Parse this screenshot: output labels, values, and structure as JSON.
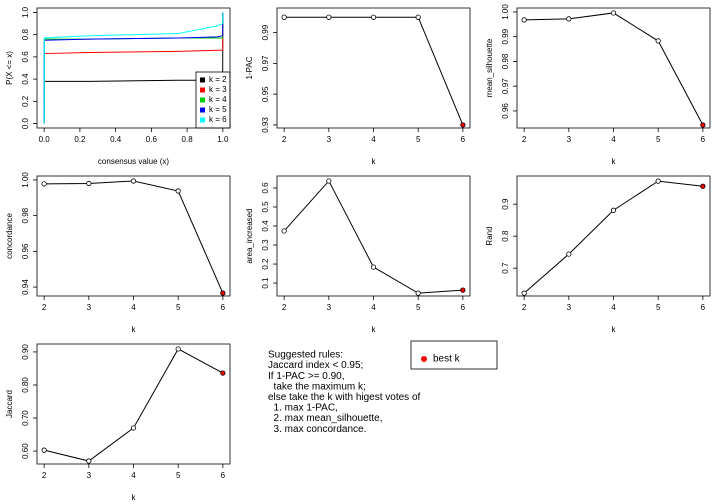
{
  "chart_data": [
    {
      "type": "line",
      "xlabel": "consensus value (x)",
      "ylabel": "P(X <= x)",
      "x": [
        0,
        0.001,
        0.25,
        0.75,
        0.97,
        0.999,
        1
      ],
      "series": [
        {
          "name": "k = 2",
          "color": "#000000",
          "values": [
            0,
            0.38,
            0.38,
            0.39,
            0.39,
            0.39,
            1
          ]
        },
        {
          "name": "k = 3",
          "color": "#ff0000",
          "values": [
            0,
            0.63,
            0.64,
            0.65,
            0.66,
            0.66,
            1
          ]
        },
        {
          "name": "k = 4",
          "color": "#00cd00",
          "values": [
            0,
            0.76,
            0.76,
            0.77,
            0.77,
            0.77,
            1
          ]
        },
        {
          "name": "k = 5",
          "color": "#0000ff",
          "values": [
            0,
            0.75,
            0.76,
            0.77,
            0.78,
            0.79,
            1
          ]
        },
        {
          "name": "k = 6",
          "color": "#00ffff",
          "values": [
            0,
            0.77,
            0.79,
            0.81,
            0.88,
            0.9,
            1
          ]
        }
      ],
      "xlim": [
        -0.04,
        1.04
      ],
      "ylim": [
        -0.04,
        1.04
      ],
      "xticks": [
        {
          "value": 0,
          "label": "0.0"
        },
        0.2,
        0.4,
        0.6,
        0.8,
        {
          "value": 1,
          "label": "1.0"
        }
      ],
      "yticks": [
        {
          "value": 0,
          "label": "0.0"
        },
        0.2,
        0.4,
        0.6,
        0.8,
        {
          "value": 1,
          "label": "1.0"
        }
      ],
      "legend": "bottomright"
    },
    {
      "type": "line",
      "xlabel": "k",
      "ylabel": "1-PAC",
      "x": [
        2,
        3,
        4,
        5,
        6
      ],
      "values": [
        1,
        1,
        1,
        1,
        0.93
      ],
      "color": "#000000",
      "best_x": 6,
      "best_color": "#ff0000",
      "xlim": [
        1.84,
        6.16
      ],
      "ylim": [
        0.928,
        1.006
      ],
      "xticks": [
        2,
        3,
        4,
        5,
        6
      ],
      "yticks": [
        0.93,
        0.95,
        0.97,
        0.99
      ]
    },
    {
      "type": "line",
      "xlabel": "k",
      "ylabel": "mean_silhouette",
      "x": [
        2,
        3,
        4,
        5,
        6
      ],
      "values": [
        0.9968,
        0.9972,
        0.9996,
        0.9883,
        0.9543
      ],
      "color": "#000000",
      "best_x": 6,
      "best_color": "#ff0000",
      "xlim": [
        1.84,
        6.16
      ],
      "ylim": [
        0.9531,
        1.0016
      ],
      "xticks": [
        2,
        3,
        4,
        5,
        6
      ],
      "yticks": [
        0.96,
        0.97,
        0.98,
        0.99,
        {
          "value": 1,
          "label": "1.00"
        }
      ]
    },
    {
      "type": "line",
      "xlabel": "k",
      "ylabel": "concordance",
      "x": [
        2,
        3,
        4,
        5,
        6
      ],
      "values": [
        0.9978,
        0.998,
        0.9994,
        0.9938,
        0.9366
      ],
      "color": "#000000",
      "best_x": 6,
      "best_color": "#ff0000",
      "xlim": [
        1.84,
        6.16
      ],
      "ylim": [
        0.935,
        1.0022
      ],
      "xticks": [
        2,
        3,
        4,
        5,
        6
      ],
      "yticks": [
        0.94,
        0.96,
        0.98,
        {
          "value": 1,
          "label": "1.00"
        }
      ]
    },
    {
      "type": "line",
      "xlabel": "k",
      "ylabel": "area_increased",
      "x": [
        2,
        3,
        4,
        5,
        6
      ],
      "values": [
        0.374,
        0.637,
        0.184,
        0.047,
        0.063
      ],
      "color": "#000000",
      "best_x": 6,
      "best_color": "#ff0000",
      "xlim": [
        1.84,
        6.16
      ],
      "ylim": [
        0.032,
        0.663
      ],
      "xticks": [
        2,
        3,
        4,
        5,
        6
      ],
      "yticks": [
        0.1,
        0.2,
        0.3,
        0.4,
        0.5,
        0.6
      ]
    },
    {
      "type": "line",
      "xlabel": "k",
      "ylabel": "Rand",
      "x": [
        2,
        3,
        4,
        5,
        6
      ],
      "values": [
        0.622,
        0.744,
        0.881,
        0.972,
        0.956
      ],
      "color": "#000000",
      "best_x": 6,
      "best_color": "#ff0000",
      "xlim": [
        1.84,
        6.16
      ],
      "ylim": [
        0.613,
        0.988
      ],
      "xticks": [
        2,
        3,
        4,
        5,
        6
      ],
      "yticks": [
        0.7,
        0.8,
        0.9
      ]
    },
    {
      "type": "line",
      "xlabel": "k",
      "ylabel": "Jaccard",
      "x": [
        2,
        3,
        4,
        5,
        6
      ],
      "values": [
        0.603,
        0.57,
        0.67,
        0.909,
        0.836
      ],
      "color": "#000000",
      "best_x": 6,
      "best_color": "#ff0000",
      "xlim": [
        1.84,
        6.16
      ],
      "ylim": [
        0.561,
        0.924
      ],
      "xticks": [
        2,
        3,
        4,
        5,
        6
      ],
      "yticks": [
        {
          "value": 0.6,
          "label": "0.60"
        },
        {
          "value": 0.7,
          "label": "0.70"
        },
        {
          "value": 0.8,
          "label": "0.80"
        },
        {
          "value": 0.9,
          "label": "0.90"
        }
      ]
    }
  ],
  "rules": [
    "Suggested rules:",
    "Jaccard index < 0.95;",
    "If 1-PAC >= 0.90,",
    "  take the maximum k;",
    "else take the k with higest votes of",
    "  1. max 1-PAC,",
    "  2. max mean_silhouette,",
    "  3. max concordance."
  ],
  "best_legend": {
    "label": "best k",
    "color": "#ff0000"
  }
}
